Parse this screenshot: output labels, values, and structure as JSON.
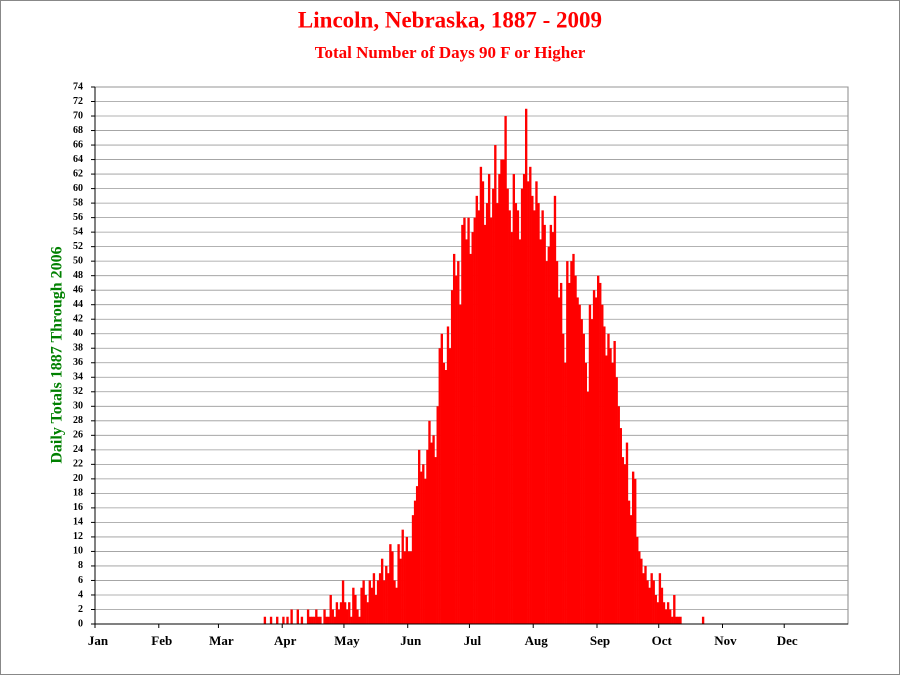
{
  "chart_data": {
    "type": "bar",
    "title": "Lincoln, Nebraska, 1887 - 2009",
    "subtitle": "Total Number of Days 90 F or Higher",
    "y_label": "Daily Totals 1887 Through 2006",
    "color": "#ff0000",
    "grid": true,
    "values": [
      0,
      0,
      0,
      0,
      0,
      0,
      0,
      0,
      0,
      0,
      0,
      0,
      0,
      0,
      0,
      0,
      0,
      0,
      0,
      0,
      0,
      0,
      0,
      0,
      0,
      0,
      0,
      0,
      0,
      0,
      0,
      0,
      0,
      0,
      0,
      0,
      0,
      0,
      0,
      0,
      0,
      0,
      0,
      0,
      0,
      0,
      0,
      0,
      0,
      0,
      0,
      0,
      0,
      0,
      0,
      0,
      0,
      0,
      0,
      0,
      0,
      0,
      0,
      0,
      0,
      0,
      0,
      0,
      0,
      0,
      0,
      0,
      0,
      0,
      0,
      0,
      0,
      0,
      0,
      0,
      0,
      0,
      1,
      0,
      0,
      1,
      0,
      0,
      1,
      0,
      0,
      1,
      0,
      1,
      0,
      2,
      0,
      0,
      2,
      0,
      1,
      0,
      0,
      2,
      1,
      1,
      1,
      2,
      1,
      1,
      0,
      2,
      1,
      1,
      4,
      2,
      1,
      3,
      2,
      3,
      6,
      3,
      2,
      3,
      1,
      5,
      4,
      2,
      1,
      5,
      6,
      4,
      3,
      6,
      5,
      7,
      4,
      6,
      7,
      9,
      6,
      8,
      7,
      11,
      10,
      6,
      5,
      11,
      9,
      13,
      10,
      12,
      10,
      10,
      15,
      17,
      19,
      24,
      21,
      22,
      20,
      24,
      28,
      25,
      26,
      23,
      30,
      38,
      40,
      36,
      35,
      41,
      38,
      46,
      51,
      48,
      50,
      44,
      55,
      56,
      53,
      56,
      51,
      54,
      56,
      59,
      57,
      63,
      61,
      55,
      58,
      62,
      56,
      60,
      66,
      58,
      62,
      64,
      64,
      70,
      60,
      57,
      54,
      62,
      58,
      57,
      53,
      60,
      62,
      71,
      61,
      63,
      59,
      57,
      61,
      58,
      53,
      57,
      55,
      50,
      52,
      55,
      54,
      59,
      50,
      45,
      47,
      40,
      36,
      50,
      47,
      50,
      51,
      48,
      45,
      44,
      42,
      40,
      36,
      32,
      44,
      42,
      46,
      45,
      48,
      47,
      44,
      41,
      37,
      40,
      38,
      36,
      39,
      34,
      30,
      27,
      23,
      22,
      25,
      17,
      15,
      21,
      20,
      12,
      10,
      9,
      7,
      8,
      6,
      5,
      7,
      6,
      4,
      3,
      7,
      5,
      3,
      2,
      3,
      2,
      1,
      4,
      1,
      1,
      1,
      0,
      0,
      0,
      0,
      0,
      0,
      0,
      0,
      0,
      0,
      1,
      0,
      0,
      0,
      0,
      0,
      0,
      0,
      0,
      0,
      0,
      0,
      0,
      0,
      0,
      0,
      0,
      0,
      0,
      0,
      0,
      0,
      0,
      0,
      0,
      0,
      0,
      0,
      0,
      0,
      0,
      0,
      0,
      0,
      0,
      0,
      0,
      0,
      0,
      0,
      0,
      0,
      0,
      0,
      0,
      0,
      0,
      0,
      0,
      0,
      0,
      0,
      0,
      0,
      0,
      0,
      0,
      0,
      0,
      0,
      0,
      0,
      0,
      0,
      0,
      0,
      0,
      0,
      0,
      0,
      0
    ],
    "xlim": [
      0,
      366
    ],
    "xticks": [
      {
        "value": 0,
        "label": "Jan"
      },
      {
        "value": 31,
        "label": "Feb"
      },
      {
        "value": 60,
        "label": "Mar"
      },
      {
        "value": 91,
        "label": "Apr"
      },
      {
        "value": 121,
        "label": "May"
      },
      {
        "value": 152,
        "label": "Jun"
      },
      {
        "value": 182,
        "label": "Jul"
      },
      {
        "value": 213,
        "label": "Aug"
      },
      {
        "value": 244,
        "label": "Sep"
      },
      {
        "value": 274,
        "label": "Oct"
      },
      {
        "value": 305,
        "label": "Nov"
      },
      {
        "value": 335,
        "label": "Dec"
      }
    ],
    "ylim": [
      0,
      74
    ],
    "yticks": [
      0,
      2,
      4,
      6,
      8,
      10,
      12,
      14,
      16,
      18,
      20,
      22,
      24,
      26,
      28,
      30,
      32,
      34,
      36,
      38,
      40,
      42,
      44,
      46,
      48,
      50,
      52,
      54,
      56,
      58,
      60,
      62,
      64,
      66,
      68,
      70,
      72,
      74
    ]
  }
}
